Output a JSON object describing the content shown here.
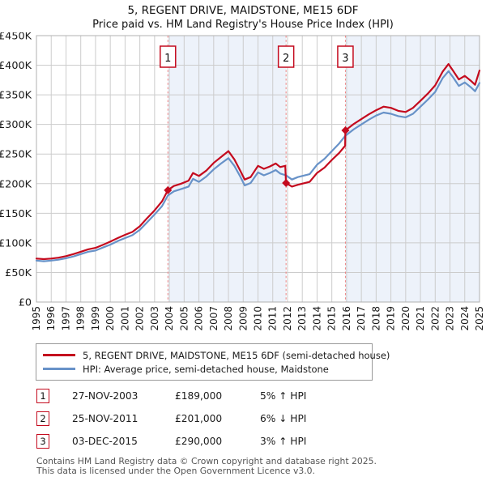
{
  "page": {
    "title": "5, REGENT DRIVE, MAIDSTONE, ME15 6DF",
    "subtitle": "Price paid vs. HM Land Registry's House Price Index (HPI)"
  },
  "colors": {
    "property_line": "#c40a1e",
    "hpi_line": "#6892c8",
    "sale_dash_line": "#ee8080",
    "band_fill": "#edf2fa",
    "grid_line": "#cccccc",
    "plot_border": "#b0b0b0",
    "marker_box_border": "#c40a1e",
    "marker_box_fill": "#ffffff",
    "axis_text": "#1a1a1a"
  },
  "legend": {
    "items": [
      {
        "label": "5, REGENT DRIVE, MAIDSTONE, ME15 6DF (semi-detached house)",
        "color": "#c40a1e"
      },
      {
        "label": "HPI: Average price, semi-detached house, Maidstone",
        "color": "#6892c8"
      }
    ]
  },
  "sales_table": {
    "rows": [
      {
        "num": "1",
        "date": "27-NOV-2003",
        "price": "£189,000",
        "hpi_relation": "5% ↑ HPI"
      },
      {
        "num": "2",
        "date": "25-NOV-2011",
        "price": "£201,000",
        "hpi_relation": "6% ↓ HPI"
      },
      {
        "num": "3",
        "date": "03-DEC-2015",
        "price": "£290,000",
        "hpi_relation": "3% ↑ HPI"
      }
    ]
  },
  "footer": {
    "line1": "Contains HM Land Registry data © Crown copyright and database right 2025.",
    "line2": "This data is licensed under the Open Government Licence v3.0."
  },
  "chart_data": {
    "type": "line",
    "title": "5, REGENT DRIVE, MAIDSTONE, ME15 6DF",
    "subtitle": "Price paid vs. HM Land Registry's House Price Index (HPI)",
    "xlabel": "",
    "ylabel": "",
    "xlim": [
      1995,
      2025
    ],
    "ylim": [
      0,
      450000
    ],
    "grid": true,
    "legend_position": "bottom",
    "x_ticks": [
      1995,
      1996,
      1997,
      1998,
      1999,
      2000,
      2001,
      2002,
      2003,
      2004,
      2005,
      2006,
      2007,
      2008,
      2009,
      2010,
      2011,
      2012,
      2013,
      2014,
      2015,
      2016,
      2017,
      2018,
      2019,
      2020,
      2021,
      2022,
      2023,
      2024,
      2025
    ],
    "y_tick_values": [
      0,
      50000,
      100000,
      150000,
      200000,
      250000,
      300000,
      350000,
      400000,
      450000
    ],
    "y_tick_labels": [
      "£0",
      "£50K",
      "£100K",
      "£150K",
      "£200K",
      "£250K",
      "£300K",
      "£350K",
      "£400K",
      "£450K"
    ],
    "background_bands": [
      {
        "from_x": 2003.9,
        "to_x": 2011.9
      },
      {
        "from_x": 2015.92,
        "to_x": 2025
      }
    ],
    "sale_markers": [
      {
        "num": "1",
        "x": 2003.9,
        "y": 189000
      },
      {
        "num": "2",
        "x": 2011.9,
        "y": 201000
      },
      {
        "num": "3",
        "x": 2015.92,
        "y": 290000
      }
    ],
    "series": [
      {
        "name": "5, REGENT DRIVE, MAIDSTONE, ME15 6DF (semi-detached house)",
        "color": "#c40a1e",
        "x": [
          1995.0,
          1995.5,
          1996.0,
          1996.5,
          1997.0,
          1997.5,
          1998.0,
          1998.5,
          1999.0,
          1999.5,
          2000.0,
          2000.5,
          2001.0,
          2001.5,
          2002.0,
          2002.5,
          2003.0,
          2003.5,
          2003.9,
          2004.3,
          2004.8,
          2005.3,
          2005.6,
          2006.0,
          2006.5,
          2007.0,
          2007.5,
          2008.0,
          2008.4,
          2008.8,
          2009.1,
          2009.5,
          2010.0,
          2010.4,
          2010.8,
          2011.2,
          2011.5,
          2011.85,
          2011.9,
          2012.3,
          2012.7,
          2013.0,
          2013.5,
          2014.0,
          2014.5,
          2015.0,
          2015.5,
          2015.9,
          2015.92,
          2016.5,
          2017.0,
          2017.5,
          2018.0,
          2018.5,
          2019.0,
          2019.5,
          2020.0,
          2020.5,
          2021.0,
          2021.5,
          2022.0,
          2022.5,
          2022.9,
          2023.2,
          2023.6,
          2024.0,
          2024.4,
          2024.7,
          2025.0
        ],
        "y": [
          73500,
          72500,
          73500,
          75000,
          77500,
          81000,
          85000,
          89000,
          91500,
          96500,
          102000,
          108000,
          113500,
          118500,
          128000,
          142000,
          155000,
          170000,
          189000,
          196000,
          200000,
          205000,
          218000,
          213000,
          222000,
          235000,
          245000,
          255000,
          241000,
          222000,
          207000,
          211000,
          230000,
          225000,
          229000,
          234000,
          228000,
          230000,
          201000,
          195000,
          198000,
          200000,
          203000,
          218000,
          227000,
          240000,
          252000,
          264000,
          290000,
          301000,
          309000,
          317000,
          324000,
          330000,
          328000,
          323000,
          321000,
          328000,
          340000,
          352000,
          366000,
          389000,
          402000,
          391000,
          376000,
          382000,
          374000,
          367000,
          391000
        ]
      },
      {
        "name": "HPI: Average price, semi-detached house, Maidstone",
        "color": "#6892c8",
        "x": [
          1995.0,
          1995.5,
          1996.0,
          1996.5,
          1997.0,
          1997.5,
          1998.0,
          1998.5,
          1999.0,
          1999.5,
          2000.0,
          2000.5,
          2001.0,
          2001.5,
          2002.0,
          2002.5,
          2003.0,
          2003.5,
          2003.9,
          2004.3,
          2004.8,
          2005.3,
          2005.6,
          2006.0,
          2006.5,
          2007.0,
          2007.5,
          2008.0,
          2008.4,
          2008.8,
          2009.1,
          2009.5,
          2010.0,
          2010.4,
          2010.8,
          2011.2,
          2011.5,
          2011.9,
          2012.3,
          2012.7,
          2013.0,
          2013.5,
          2014.0,
          2014.5,
          2015.0,
          2015.5,
          2015.92,
          2016.5,
          2017.0,
          2017.5,
          2018.0,
          2018.5,
          2019.0,
          2019.5,
          2020.0,
          2020.5,
          2021.0,
          2021.5,
          2022.0,
          2022.5,
          2022.9,
          2023.2,
          2023.6,
          2024.0,
          2024.4,
          2024.7,
          2025.0
        ],
        "y": [
          70000,
          69000,
          70000,
          71500,
          74000,
          77000,
          81000,
          85000,
          87000,
          92000,
          97000,
          103000,
          108000,
          113000,
          122000,
          135000,
          148000,
          162000,
          180000,
          187000,
          191000,
          195000,
          208000,
          203000,
          212000,
          224000,
          234000,
          243000,
          230000,
          212000,
          197000,
          201000,
          219000,
          214000,
          218000,
          223000,
          217000,
          214000,
          207000,
          211000,
          213000,
          216000,
          232000,
          242000,
          255000,
          268000,
          281000,
          292000,
          300000,
          308000,
          315000,
          320000,
          318000,
          314000,
          312000,
          318000,
          330000,
          342000,
          355000,
          378000,
          390000,
          380000,
          365000,
          371000,
          363000,
          356000,
          370000
        ]
      }
    ]
  }
}
